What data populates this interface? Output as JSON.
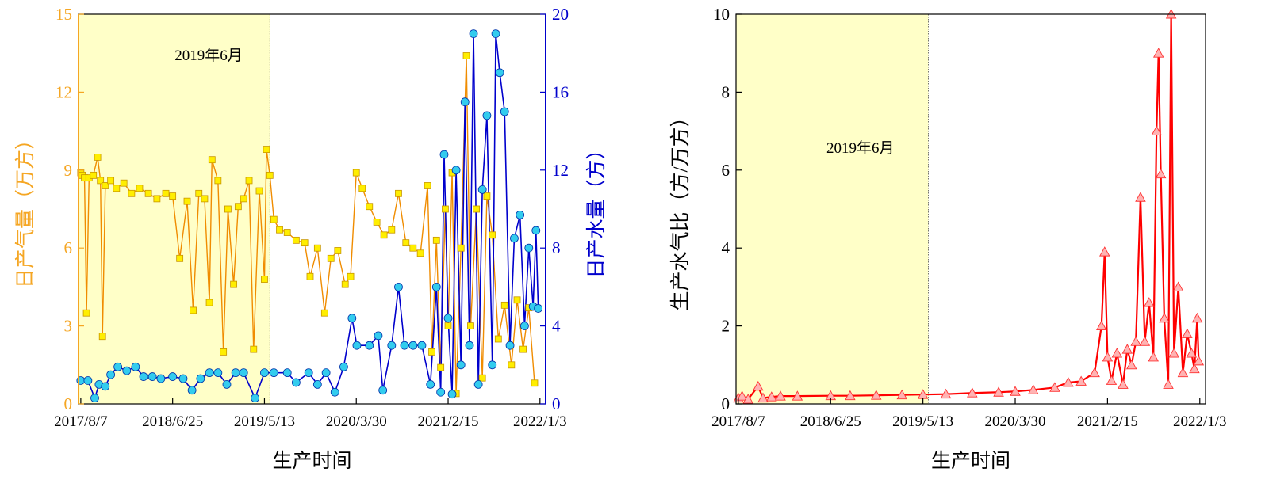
{
  "chart_data": [
    {
      "type": "line",
      "xlabel": "生产时间",
      "ylabel": "日产气量（万方）",
      "y2label": "日产水量（方）",
      "x_tick_labels": [
        "2017/8/7",
        "2018/6/25",
        "2019/5/13",
        "2020/3/30",
        "2021/2/15",
        "2022/1/3"
      ],
      "x_tick_dates": [
        "2017-08-07",
        "2018-06-25",
        "2019-05-13",
        "2020-03-30",
        "2021-02-15",
        "2022-01-03"
      ],
      "xlim": [
        "2017-07-30",
        "2022-01-23"
      ],
      "ylim": [
        0,
        15
      ],
      "yticks": [
        "0",
        "3",
        "6",
        "9",
        "12",
        "15"
      ],
      "y2lim": [
        0,
        20
      ],
      "y2ticks": [
        "0",
        "4",
        "8",
        "12",
        "16",
        "20"
      ],
      "shaded_region": {
        "from": "2017-07-30",
        "to": "2019-06-01",
        "color": "#ffffc8"
      },
      "annotation": "2019年6月",
      "grid": false,
      "colors": {
        "left_axis": "#f5a623",
        "right_axis": "#0000cc",
        "gas_line": "#f08c00",
        "gas_marker": "#ffee00",
        "water_line": "#0000cc",
        "water_marker": "#33ccee"
      },
      "series": [
        {
          "axis": "left",
          "marker": "square",
          "points": [
            [
              "2017-08-07",
              8.9
            ],
            [
              "2017-08-12",
              8.8
            ],
            [
              "2017-08-20",
              8.7
            ],
            [
              "2017-08-27",
              3.5
            ],
            [
              "2017-09-05",
              8.7
            ],
            [
              "2017-09-20",
              8.8
            ],
            [
              "2017-10-05",
              9.5
            ],
            [
              "2017-10-15",
              8.6
            ],
            [
              "2017-10-22",
              2.6
            ],
            [
              "2017-11-01",
              8.4
            ],
            [
              "2017-11-20",
              8.6
            ],
            [
              "2017-12-10",
              8.3
            ],
            [
              "2018-01-05",
              8.5
            ],
            [
              "2018-02-01",
              8.1
            ],
            [
              "2018-03-01",
              8.3
            ],
            [
              "2018-04-01",
              8.1
            ],
            [
              "2018-05-01",
              7.9
            ],
            [
              "2018-06-01",
              8.1
            ],
            [
              "2018-06-25",
              8.0
            ],
            [
              "2018-07-20",
              5.6
            ],
            [
              "2018-08-15",
              7.8
            ],
            [
              "2018-09-05",
              3.6
            ],
            [
              "2018-09-25",
              8.1
            ],
            [
              "2018-10-15",
              7.9
            ],
            [
              "2018-11-01",
              3.9
            ],
            [
              "2018-11-10",
              9.4
            ],
            [
              "2018-12-01",
              8.6
            ],
            [
              "2018-12-20",
              2.0
            ],
            [
              "2019-01-05",
              7.5
            ],
            [
              "2019-01-25",
              4.6
            ],
            [
              "2019-02-10",
              7.6
            ],
            [
              "2019-03-01",
              7.9
            ],
            [
              "2019-03-20",
              8.6
            ],
            [
              "2019-04-05",
              2.1
            ],
            [
              "2019-04-25",
              8.2
            ],
            [
              "2019-05-13",
              4.8
            ],
            [
              "2019-05-20",
              9.8
            ],
            [
              "2019-06-01",
              8.8
            ],
            [
              "2019-06-15",
              7.1
            ],
            [
              "2019-07-05",
              6.7
            ],
            [
              "2019-08-01",
              6.6
            ],
            [
              "2019-09-01",
              6.3
            ],
            [
              "2019-10-01",
              6.2
            ],
            [
              "2019-10-20",
              4.9
            ],
            [
              "2019-11-15",
              6.0
            ],
            [
              "2019-12-10",
              3.5
            ],
            [
              "2020-01-01",
              5.6
            ],
            [
              "2020-01-25",
              5.9
            ],
            [
              "2020-02-20",
              4.6
            ],
            [
              "2020-03-10",
              4.9
            ],
            [
              "2020-03-30",
              8.9
            ],
            [
              "2020-04-20",
              8.3
            ],
            [
              "2020-05-15",
              7.6
            ],
            [
              "2020-06-10",
              7.0
            ],
            [
              "2020-07-05",
              6.5
            ],
            [
              "2020-08-01",
              6.7
            ],
            [
              "2020-08-25",
              8.1
            ],
            [
              "2020-09-20",
              6.2
            ],
            [
              "2020-10-15",
              6.0
            ],
            [
              "2020-11-10",
              5.8
            ],
            [
              "2020-12-05",
              8.4
            ],
            [
              "2020-12-20",
              2.0
            ],
            [
              "2021-01-05",
              6.3
            ],
            [
              "2021-01-20",
              1.4
            ],
            [
              "2021-02-05",
              7.5
            ],
            [
              "2021-02-15",
              3.0
            ],
            [
              "2021-03-01",
              8.9
            ],
            [
              "2021-03-15",
              0.4
            ],
            [
              "2021-04-01",
              6.0
            ],
            [
              "2021-04-20",
              13.4
            ],
            [
              "2021-05-05",
              3.0
            ],
            [
              "2021-05-25",
              7.5
            ],
            [
              "2021-06-15",
              1.0
            ],
            [
              "2021-07-01",
              8.0
            ],
            [
              "2021-07-20",
              6.5
            ],
            [
              "2021-08-10",
              2.5
            ],
            [
              "2021-09-01",
              3.8
            ],
            [
              "2021-09-25",
              1.5
            ],
            [
              "2021-10-15",
              4.0
            ],
            [
              "2021-11-05",
              2.1
            ],
            [
              "2021-11-25",
              3.7
            ],
            [
              "2021-12-15",
              0.8
            ]
          ]
        },
        {
          "axis": "right",
          "marker": "circle",
          "points": [
            [
              "2017-08-07",
              1.2
            ],
            [
              "2017-09-01",
              1.2
            ],
            [
              "2017-09-25",
              0.3
            ],
            [
              "2017-10-10",
              1.0
            ],
            [
              "2017-11-01",
              0.9
            ],
            [
              "2017-11-20",
              1.5
            ],
            [
              "2017-12-15",
              1.9
            ],
            [
              "2018-01-15",
              1.7
            ],
            [
              "2018-02-15",
              1.9
            ],
            [
              "2018-03-15",
              1.4
            ],
            [
              "2018-04-15",
              1.4
            ],
            [
              "2018-05-15",
              1.3
            ],
            [
              "2018-06-25",
              1.4
            ],
            [
              "2018-08-01",
              1.3
            ],
            [
              "2018-09-01",
              0.7
            ],
            [
              "2018-10-01",
              1.3
            ],
            [
              "2018-11-01",
              1.6
            ],
            [
              "2018-12-01",
              1.6
            ],
            [
              "2019-01-01",
              1.0
            ],
            [
              "2019-02-01",
              1.6
            ],
            [
              "2019-03-01",
              1.6
            ],
            [
              "2019-04-10",
              0.3
            ],
            [
              "2019-05-13",
              1.6
            ],
            [
              "2019-06-15",
              1.6
            ],
            [
              "2019-08-01",
              1.6
            ],
            [
              "2019-09-01",
              1.1
            ],
            [
              "2019-10-15",
              1.6
            ],
            [
              "2019-11-15",
              1.0
            ],
            [
              "2019-12-15",
              1.6
            ],
            [
              "2020-01-15",
              0.6
            ],
            [
              "2020-02-15",
              1.9
            ],
            [
              "2020-03-15",
              4.4
            ],
            [
              "2020-04-01",
              3.0
            ],
            [
              "2020-05-15",
              3.0
            ],
            [
              "2020-06-15",
              3.5
            ],
            [
              "2020-07-01",
              0.7
            ],
            [
              "2020-08-01",
              3.0
            ],
            [
              "2020-08-25",
              6.0
            ],
            [
              "2020-09-15",
              3.0
            ],
            [
              "2020-10-15",
              3.0
            ],
            [
              "2020-11-15",
              3.0
            ],
            [
              "2020-12-15",
              1.0
            ],
            [
              "2021-01-05",
              6.0
            ],
            [
              "2021-01-20",
              0.6
            ],
            [
              "2021-02-01",
              12.8
            ],
            [
              "2021-02-15",
              4.4
            ],
            [
              "2021-03-01",
              0.5
            ],
            [
              "2021-03-15",
              12.0
            ],
            [
              "2021-04-01",
              2.0
            ],
            [
              "2021-04-15",
              15.5
            ],
            [
              "2021-05-01",
              3.0
            ],
            [
              "2021-05-15",
              19.0
            ],
            [
              "2021-06-01",
              1.0
            ],
            [
              "2021-06-15",
              11.0
            ],
            [
              "2021-07-01",
              14.8
            ],
            [
              "2021-07-20",
              2.0
            ],
            [
              "2021-08-01",
              19.0
            ],
            [
              "2021-08-15",
              17.0
            ],
            [
              "2021-09-01",
              15.0
            ],
            [
              "2021-09-20",
              3.0
            ],
            [
              "2021-10-05",
              8.5
            ],
            [
              "2021-10-25",
              9.7
            ],
            [
              "2021-11-10",
              4.0
            ],
            [
              "2021-11-25",
              8.0
            ],
            [
              "2021-12-10",
              5.0
            ],
            [
              "2021-12-20",
              8.9
            ],
            [
              "2021-12-28",
              4.9
            ]
          ]
        }
      ]
    },
    {
      "type": "line",
      "xlabel": "生产时间",
      "ylabel": "生产水气比（方/万方）",
      "x_tick_labels": [
        "2017/8/7",
        "2018/6/25",
        "2019/5/13",
        "2020/3/30",
        "2021/2/15",
        "2022/1/3"
      ],
      "x_tick_dates": [
        "2017-08-07",
        "2018-06-25",
        "2019-05-13",
        "2020-03-30",
        "2021-02-15",
        "2022-01-03"
      ],
      "xlim": [
        "2017-07-30",
        "2022-01-23"
      ],
      "ylim": [
        0,
        10
      ],
      "yticks": [
        "0",
        "2",
        "4",
        "6",
        "8",
        "10"
      ],
      "shaded_region": {
        "from": "2017-07-30",
        "to": "2019-06-01",
        "color": "#ffffc8"
      },
      "annotation": "2019年6月",
      "grid": false,
      "colors": {
        "line": "#ff0000",
        "marker_fill": "#ffb3b3",
        "marker_stroke": "#ff3333"
      },
      "series": [
        {
          "marker": "triangle",
          "points": [
            [
              "2017-08-07",
              0.15
            ],
            [
              "2017-08-20",
              0.2
            ],
            [
              "2017-09-10",
              0.12
            ],
            [
              "2017-10-15",
              0.45
            ],
            [
              "2017-11-01",
              0.15
            ],
            [
              "2017-12-01",
              0.18
            ],
            [
              "2018-01-01",
              0.2
            ],
            [
              "2018-03-01",
              0.2
            ],
            [
              "2018-06-25",
              0.21
            ],
            [
              "2018-09-01",
              0.21
            ],
            [
              "2018-12-01",
              0.22
            ],
            [
              "2019-03-01",
              0.23
            ],
            [
              "2019-05-13",
              0.24
            ],
            [
              "2019-08-01",
              0.25
            ],
            [
              "2019-11-01",
              0.28
            ],
            [
              "2020-02-01",
              0.3
            ],
            [
              "2020-03-30",
              0.32
            ],
            [
              "2020-06-01",
              0.36
            ],
            [
              "2020-08-15",
              0.42
            ],
            [
              "2020-10-01",
              0.55
            ],
            [
              "2020-11-15",
              0.58
            ],
            [
              "2021-01-01",
              0.8
            ],
            [
              "2021-01-25",
              2.0
            ],
            [
              "2021-02-05",
              3.9
            ],
            [
              "2021-02-15",
              1.2
            ],
            [
              "2021-03-01",
              0.6
            ],
            [
              "2021-03-20",
              1.3
            ],
            [
              "2021-04-10",
              0.5
            ],
            [
              "2021-04-25",
              1.4
            ],
            [
              "2021-05-10",
              1.0
            ],
            [
              "2021-05-25",
              1.6
            ],
            [
              "2021-06-10",
              5.3
            ],
            [
              "2021-06-25",
              1.6
            ],
            [
              "2021-07-10",
              2.6
            ],
            [
              "2021-07-25",
              1.2
            ],
            [
              "2021-08-05",
              7.0
            ],
            [
              "2021-08-12",
              9.0
            ],
            [
              "2021-08-20",
              5.9
            ],
            [
              "2021-09-01",
              2.2
            ],
            [
              "2021-09-15",
              0.5
            ],
            [
              "2021-09-25",
              10.0
            ],
            [
              "2021-10-05",
              1.3
            ],
            [
              "2021-10-20",
              3.0
            ],
            [
              "2021-11-05",
              0.8
            ],
            [
              "2021-11-20",
              1.8
            ],
            [
              "2021-12-05",
              1.3
            ],
            [
              "2021-12-15",
              0.9
            ],
            [
              "2021-12-25",
              2.2
            ],
            [
              "2021-12-30",
              1.1
            ]
          ]
        }
      ]
    }
  ]
}
